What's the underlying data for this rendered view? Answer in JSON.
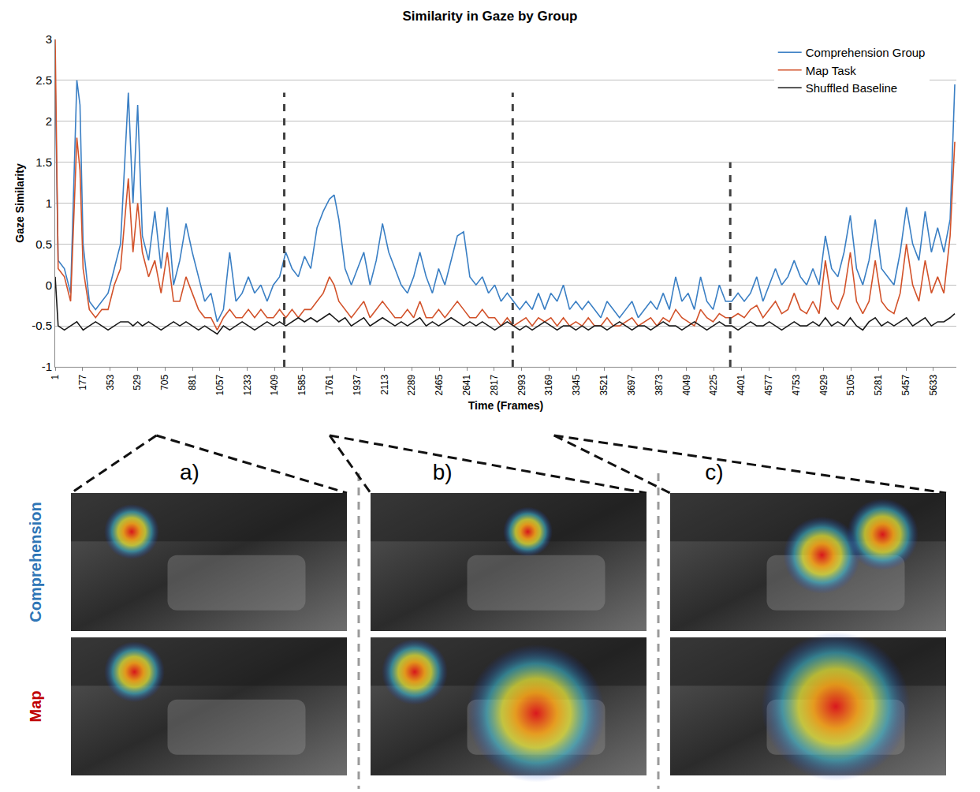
{
  "chart_data": {
    "type": "line",
    "title": "Similarity in Gaze by Group",
    "x_label": "Time (Frames)",
    "y_label": "Gaze Similarity",
    "x": [
      1,
      20,
      60,
      100,
      140,
      160,
      180,
      220,
      260,
      300,
      340,
      380,
      420,
      470,
      500,
      530,
      560,
      600,
      640,
      680,
      720,
      760,
      800,
      840,
      880,
      920,
      960,
      1000,
      1040,
      1080,
      1120,
      1160,
      1200,
      1240,
      1280,
      1320,
      1360,
      1400,
      1440,
      1480,
      1520,
      1560,
      1600,
      1640,
      1680,
      1720,
      1760,
      1790,
      1820,
      1860,
      1900,
      1940,
      1980,
      2020,
      2060,
      2100,
      2140,
      2180,
      2220,
      2260,
      2300,
      2340,
      2380,
      2420,
      2460,
      2500,
      2540,
      2580,
      2620,
      2660,
      2700,
      2740,
      2780,
      2820,
      2860,
      2900,
      2940,
      2980,
      3020,
      3060,
      3100,
      3140,
      3180,
      3220,
      3260,
      3300,
      3340,
      3380,
      3420,
      3460,
      3500,
      3540,
      3580,
      3620,
      3660,
      3700,
      3740,
      3780,
      3820,
      3860,
      3900,
      3940,
      3980,
      4020,
      4060,
      4100,
      4140,
      4180,
      4220,
      4260,
      4300,
      4340,
      4380,
      4420,
      4460,
      4500,
      4540,
      4580,
      4620,
      4660,
      4700,
      4740,
      4780,
      4820,
      4860,
      4900,
      4940,
      4980,
      5020,
      5060,
      5100,
      5140,
      5180,
      5220,
      5260,
      5300,
      5340,
      5380,
      5420,
      5460,
      5500,
      5540,
      5580,
      5620,
      5660,
      5700,
      5740,
      5770
    ],
    "series": [
      {
        "name": "Comprehension Group",
        "color": "#3a7fc4",
        "values": [
          2.5,
          0.3,
          0.2,
          -0.1,
          2.5,
          2.2,
          0.5,
          -0.2,
          -0.3,
          -0.2,
          -0.1,
          0.2,
          0.5,
          2.35,
          1.0,
          2.2,
          0.6,
          0.3,
          0.9,
          0.2,
          0.95,
          0.0,
          0.3,
          0.75,
          0.4,
          0.1,
          -0.2,
          -0.1,
          -0.45,
          -0.3,
          0.4,
          -0.2,
          -0.1,
          0.1,
          -0.1,
          0.0,
          -0.2,
          0.0,
          0.1,
          0.4,
          0.2,
          0.1,
          0.35,
          0.2,
          0.7,
          0.9,
          1.05,
          1.1,
          0.8,
          0.2,
          0.0,
          0.2,
          0.4,
          0.0,
          0.3,
          0.75,
          0.4,
          0.2,
          0.0,
          -0.1,
          0.1,
          0.4,
          0.1,
          -0.1,
          0.2,
          0.0,
          0.3,
          0.6,
          0.65,
          0.1,
          0.0,
          0.1,
          -0.1,
          0.0,
          -0.2,
          -0.1,
          -0.2,
          -0.3,
          -0.2,
          -0.3,
          -0.1,
          -0.3,
          -0.1,
          -0.2,
          0.0,
          -0.3,
          -0.2,
          -0.3,
          -0.2,
          -0.3,
          -0.4,
          -0.2,
          -0.3,
          -0.4,
          -0.3,
          -0.2,
          -0.4,
          -0.3,
          -0.2,
          -0.3,
          -0.1,
          -0.3,
          0.1,
          -0.2,
          -0.1,
          -0.3,
          0.1,
          -0.2,
          -0.3,
          0.0,
          -0.2,
          -0.2,
          -0.1,
          -0.2,
          -0.1,
          0.1,
          -0.2,
          0.0,
          0.2,
          0.0,
          0.1,
          0.3,
          0.1,
          0.0,
          0.2,
          0.0,
          0.6,
          0.2,
          0.1,
          0.4,
          0.85,
          0.2,
          0.0,
          0.3,
          0.8,
          0.2,
          0.1,
          0.0,
          0.4,
          0.95,
          0.5,
          0.3,
          0.9,
          0.4,
          0.7,
          0.4,
          0.8,
          2.45
        ]
      },
      {
        "name": "Map Task",
        "color": "#d2522a",
        "values": [
          3.0,
          0.2,
          0.1,
          -0.2,
          1.8,
          1.4,
          0.2,
          -0.3,
          -0.4,
          -0.3,
          -0.3,
          0.0,
          0.2,
          1.3,
          0.4,
          1.0,
          0.4,
          0.1,
          0.3,
          -0.1,
          0.4,
          -0.2,
          -0.2,
          0.1,
          -0.1,
          -0.3,
          -0.4,
          -0.4,
          -0.55,
          -0.4,
          -0.3,
          -0.4,
          -0.4,
          -0.3,
          -0.4,
          -0.3,
          -0.4,
          -0.4,
          -0.3,
          -0.4,
          -0.3,
          -0.4,
          -0.3,
          -0.3,
          -0.2,
          -0.1,
          0.1,
          0.0,
          -0.2,
          -0.3,
          -0.4,
          -0.3,
          -0.2,
          -0.4,
          -0.3,
          -0.2,
          -0.3,
          -0.4,
          -0.4,
          -0.3,
          -0.4,
          -0.2,
          -0.4,
          -0.4,
          -0.3,
          -0.4,
          -0.3,
          -0.2,
          -0.3,
          -0.4,
          -0.4,
          -0.3,
          -0.4,
          -0.4,
          -0.5,
          -0.4,
          -0.5,
          -0.45,
          -0.4,
          -0.5,
          -0.4,
          -0.45,
          -0.4,
          -0.5,
          -0.4,
          -0.5,
          -0.45,
          -0.5,
          -0.4,
          -0.5,
          -0.5,
          -0.4,
          -0.5,
          -0.5,
          -0.45,
          -0.4,
          -0.5,
          -0.45,
          -0.4,
          -0.5,
          -0.4,
          -0.45,
          -0.3,
          -0.4,
          -0.45,
          -0.5,
          -0.3,
          -0.4,
          -0.45,
          -0.35,
          -0.4,
          -0.4,
          -0.35,
          -0.4,
          -0.3,
          -0.25,
          -0.4,
          -0.3,
          -0.2,
          -0.35,
          -0.3,
          -0.1,
          -0.3,
          -0.35,
          -0.2,
          -0.35,
          0.3,
          -0.2,
          -0.3,
          -0.1,
          0.4,
          -0.2,
          -0.35,
          -0.2,
          0.3,
          -0.2,
          -0.3,
          -0.35,
          -0.1,
          0.5,
          0.0,
          -0.2,
          0.3,
          -0.1,
          0.1,
          -0.1,
          0.6,
          1.75
        ]
      },
      {
        "name": "Shuffled Baseline",
        "color": "#1a1a1a",
        "values": [
          0.1,
          -0.5,
          -0.55,
          -0.5,
          -0.45,
          -0.5,
          -0.55,
          -0.5,
          -0.45,
          -0.5,
          -0.55,
          -0.5,
          -0.45,
          -0.45,
          -0.5,
          -0.45,
          -0.5,
          -0.45,
          -0.5,
          -0.55,
          -0.5,
          -0.45,
          -0.5,
          -0.45,
          -0.5,
          -0.55,
          -0.5,
          -0.55,
          -0.6,
          -0.5,
          -0.55,
          -0.5,
          -0.45,
          -0.5,
          -0.55,
          -0.5,
          -0.45,
          -0.5,
          -0.45,
          -0.5,
          -0.45,
          -0.4,
          -0.45,
          -0.4,
          -0.45,
          -0.4,
          -0.35,
          -0.4,
          -0.45,
          -0.4,
          -0.5,
          -0.45,
          -0.4,
          -0.5,
          -0.45,
          -0.4,
          -0.45,
          -0.5,
          -0.45,
          -0.5,
          -0.45,
          -0.4,
          -0.5,
          -0.45,
          -0.5,
          -0.45,
          -0.4,
          -0.45,
          -0.5,
          -0.45,
          -0.5,
          -0.45,
          -0.5,
          -0.55,
          -0.5,
          -0.45,
          -0.5,
          -0.55,
          -0.5,
          -0.55,
          -0.5,
          -0.45,
          -0.5,
          -0.55,
          -0.5,
          -0.5,
          -0.55,
          -0.5,
          -0.55,
          -0.5,
          -0.5,
          -0.55,
          -0.5,
          -0.45,
          -0.5,
          -0.55,
          -0.5,
          -0.5,
          -0.55,
          -0.5,
          -0.45,
          -0.5,
          -0.5,
          -0.55,
          -0.5,
          -0.45,
          -0.5,
          -0.55,
          -0.5,
          -0.45,
          -0.5,
          -0.5,
          -0.55,
          -0.5,
          -0.45,
          -0.5,
          -0.5,
          -0.45,
          -0.5,
          -0.55,
          -0.5,
          -0.45,
          -0.5,
          -0.5,
          -0.45,
          -0.5,
          -0.4,
          -0.5,
          -0.45,
          -0.5,
          -0.4,
          -0.5,
          -0.55,
          -0.45,
          -0.4,
          -0.5,
          -0.45,
          -0.5,
          -0.45,
          -0.4,
          -0.5,
          -0.45,
          -0.4,
          -0.5,
          -0.45,
          -0.45,
          -0.4,
          -0.35
        ]
      }
    ],
    "xlim": [
      1,
      5780
    ],
    "xticks": [
      1,
      177,
      353,
      529,
      705,
      881,
      1057,
      1233,
      1409,
      1585,
      1761,
      1937,
      2113,
      2289,
      2465,
      2641,
      2817,
      2993,
      3169,
      3345,
      3521,
      3697,
      3873,
      4049,
      4225,
      4401,
      4577,
      4753,
      4929,
      5105,
      5281,
      5457,
      5633
    ],
    "ylim": [
      -1,
      3
    ],
    "yticks": [
      -1,
      -0.5,
      0,
      0.5,
      1,
      1.5,
      2,
      2.5,
      3
    ],
    "grid": true,
    "legend": "upper right",
    "dividers": {
      "x": [
        1470,
        2935,
        4330
      ],
      "top": [
        2.35,
        2.35,
        1.5
      ]
    }
  },
  "panels": {
    "labels": [
      "a)",
      "b)",
      "c)"
    ],
    "frames": [
      650,
      1761,
      3200
    ],
    "rows": [
      "Comprehension",
      "Map"
    ],
    "row_colors": [
      "#2e75b6",
      "#c00000"
    ]
  }
}
